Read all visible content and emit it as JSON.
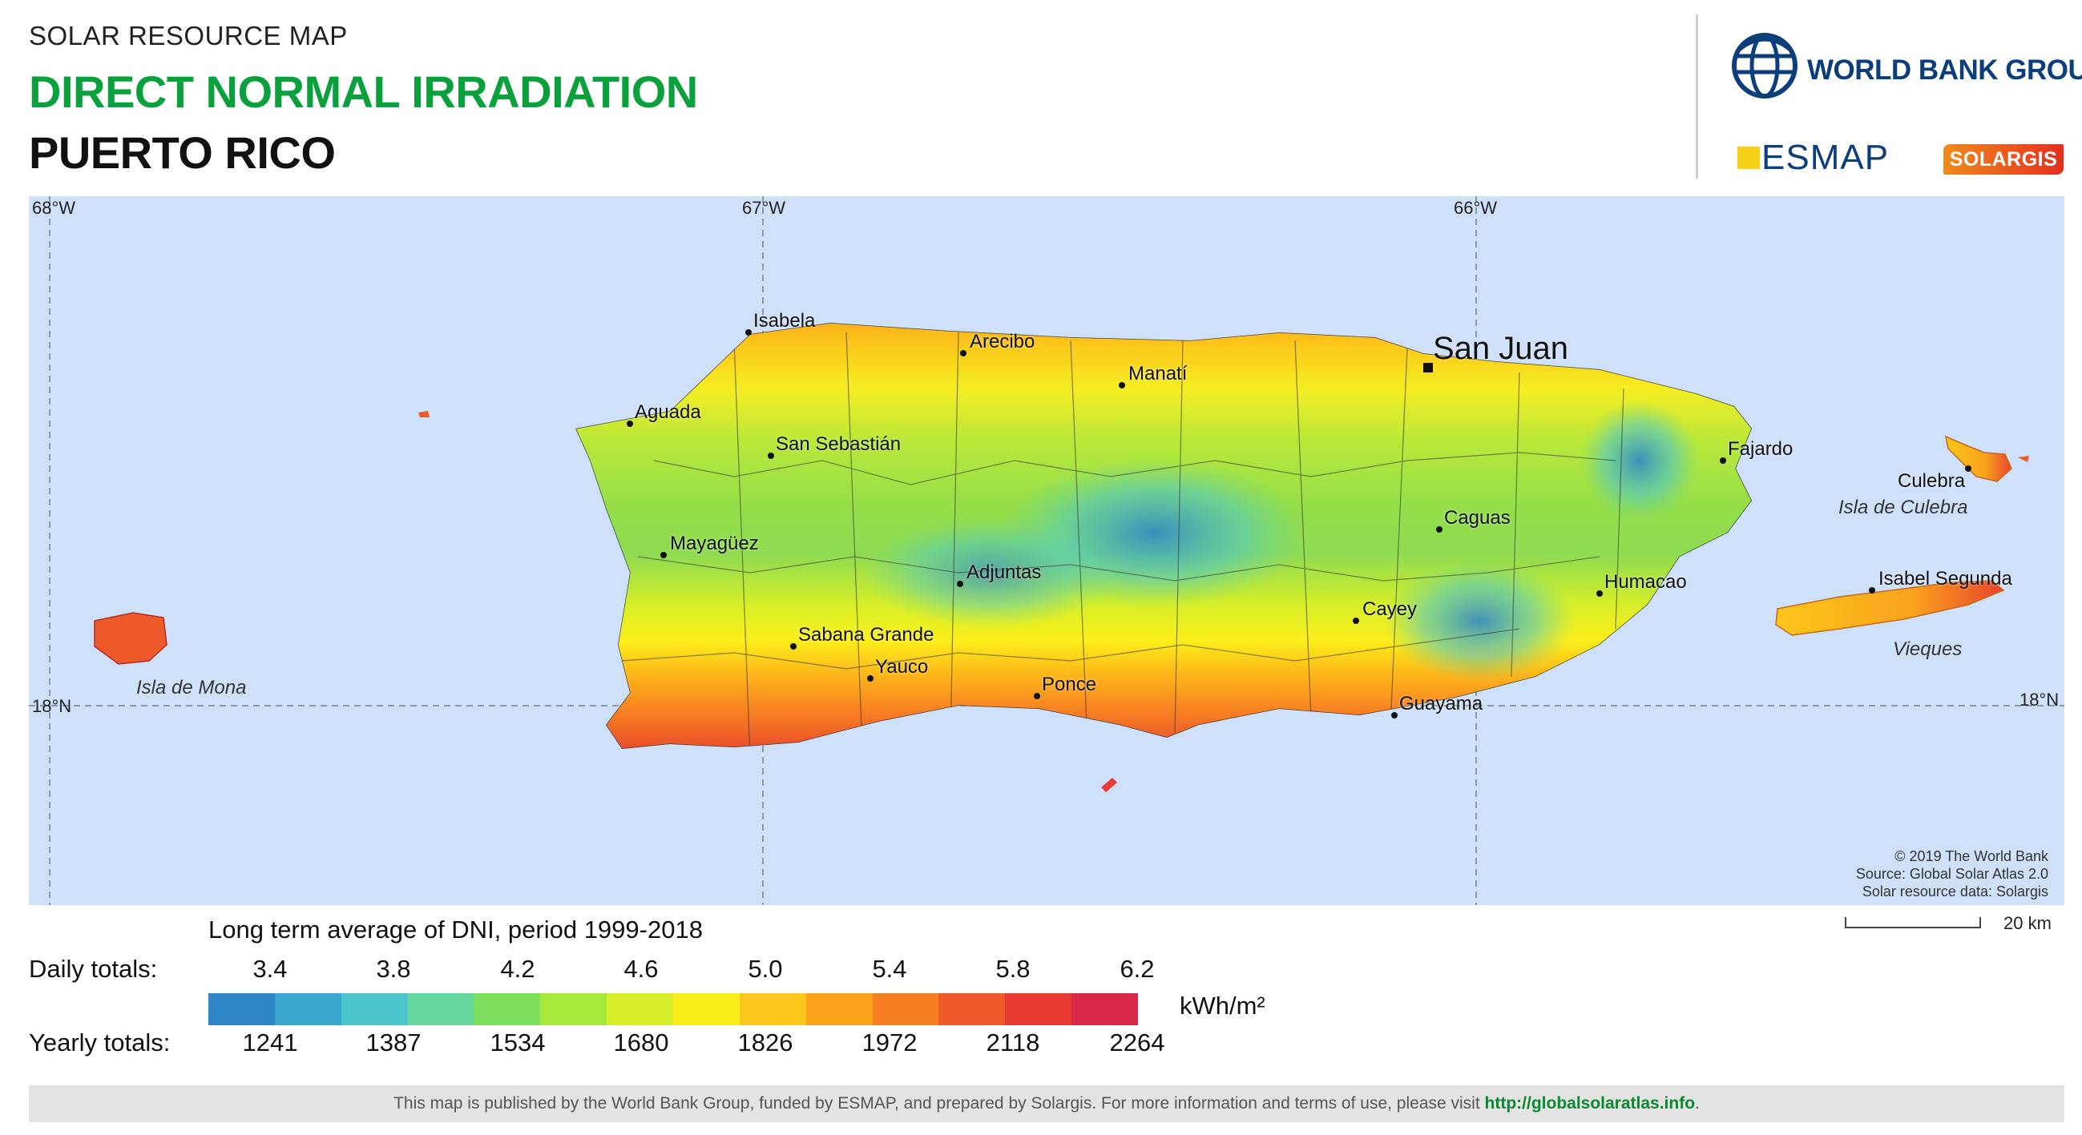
{
  "header": {
    "kicker": "SOLAR RESOURCE MAP",
    "title": "DIRECT NORMAL IRRADIATION",
    "country": "PUERTO RICO"
  },
  "logos": {
    "world_bank": "WORLD BANK GROUP",
    "esmap": "ESMAP",
    "solargis": "SOLARGIS"
  },
  "map": {
    "graticule": {
      "longitudes": [
        "68°W",
        "67°W",
        "66°W"
      ],
      "latitude": "18°N"
    },
    "capital": "San Juan",
    "places": [
      "Isabela",
      "Arecibo",
      "Manatí",
      "Aguada",
      "San Sebastián",
      "Mayagüez",
      "Adjuntas",
      "Sabana Grande",
      "Yauco",
      "Ponce",
      "Caguas",
      "Cayey",
      "Guayama",
      "Humacao",
      "Fajardo",
      "Culebra",
      "Isabel Segunda"
    ],
    "water_labels": [
      "Isla de Mona",
      "Isla de Culebra",
      "Vieques"
    ],
    "credits": [
      "© 2019 The World Bank",
      "Source: Global Solar Atlas 2.0",
      "Solar resource data: Solargis"
    ],
    "scale_label": "20 km"
  },
  "legend": {
    "caption": "Long term average of DNI, period 1999-2018",
    "daily_label": "Daily totals:",
    "yearly_label": "Yearly totals:",
    "daily_ticks": [
      "3.4",
      "3.8",
      "4.2",
      "4.6",
      "5.0",
      "5.4",
      "5.8",
      "6.2"
    ],
    "yearly_ticks": [
      "1241",
      "1387",
      "1534",
      "1680",
      "1826",
      "1972",
      "2118",
      "2264"
    ],
    "unit": "kWh/m²",
    "colors": [
      "#2e86c7",
      "#3aa7cf",
      "#4cc6cc",
      "#66d59e",
      "#7de05a",
      "#a8e83a",
      "#d6ef28",
      "#fbef1b",
      "#fcc61a",
      "#fba21a",
      "#f77f22",
      "#ee5a2a",
      "#e63a32",
      "#d8284a"
    ]
  },
  "footer": {
    "text": "This map is published by the World Bank Group, funded by ESMAP, and prepared by Solargis. For more information and terms of use, please visit",
    "link": "http://globalsolaratlas.info",
    "end": "."
  }
}
